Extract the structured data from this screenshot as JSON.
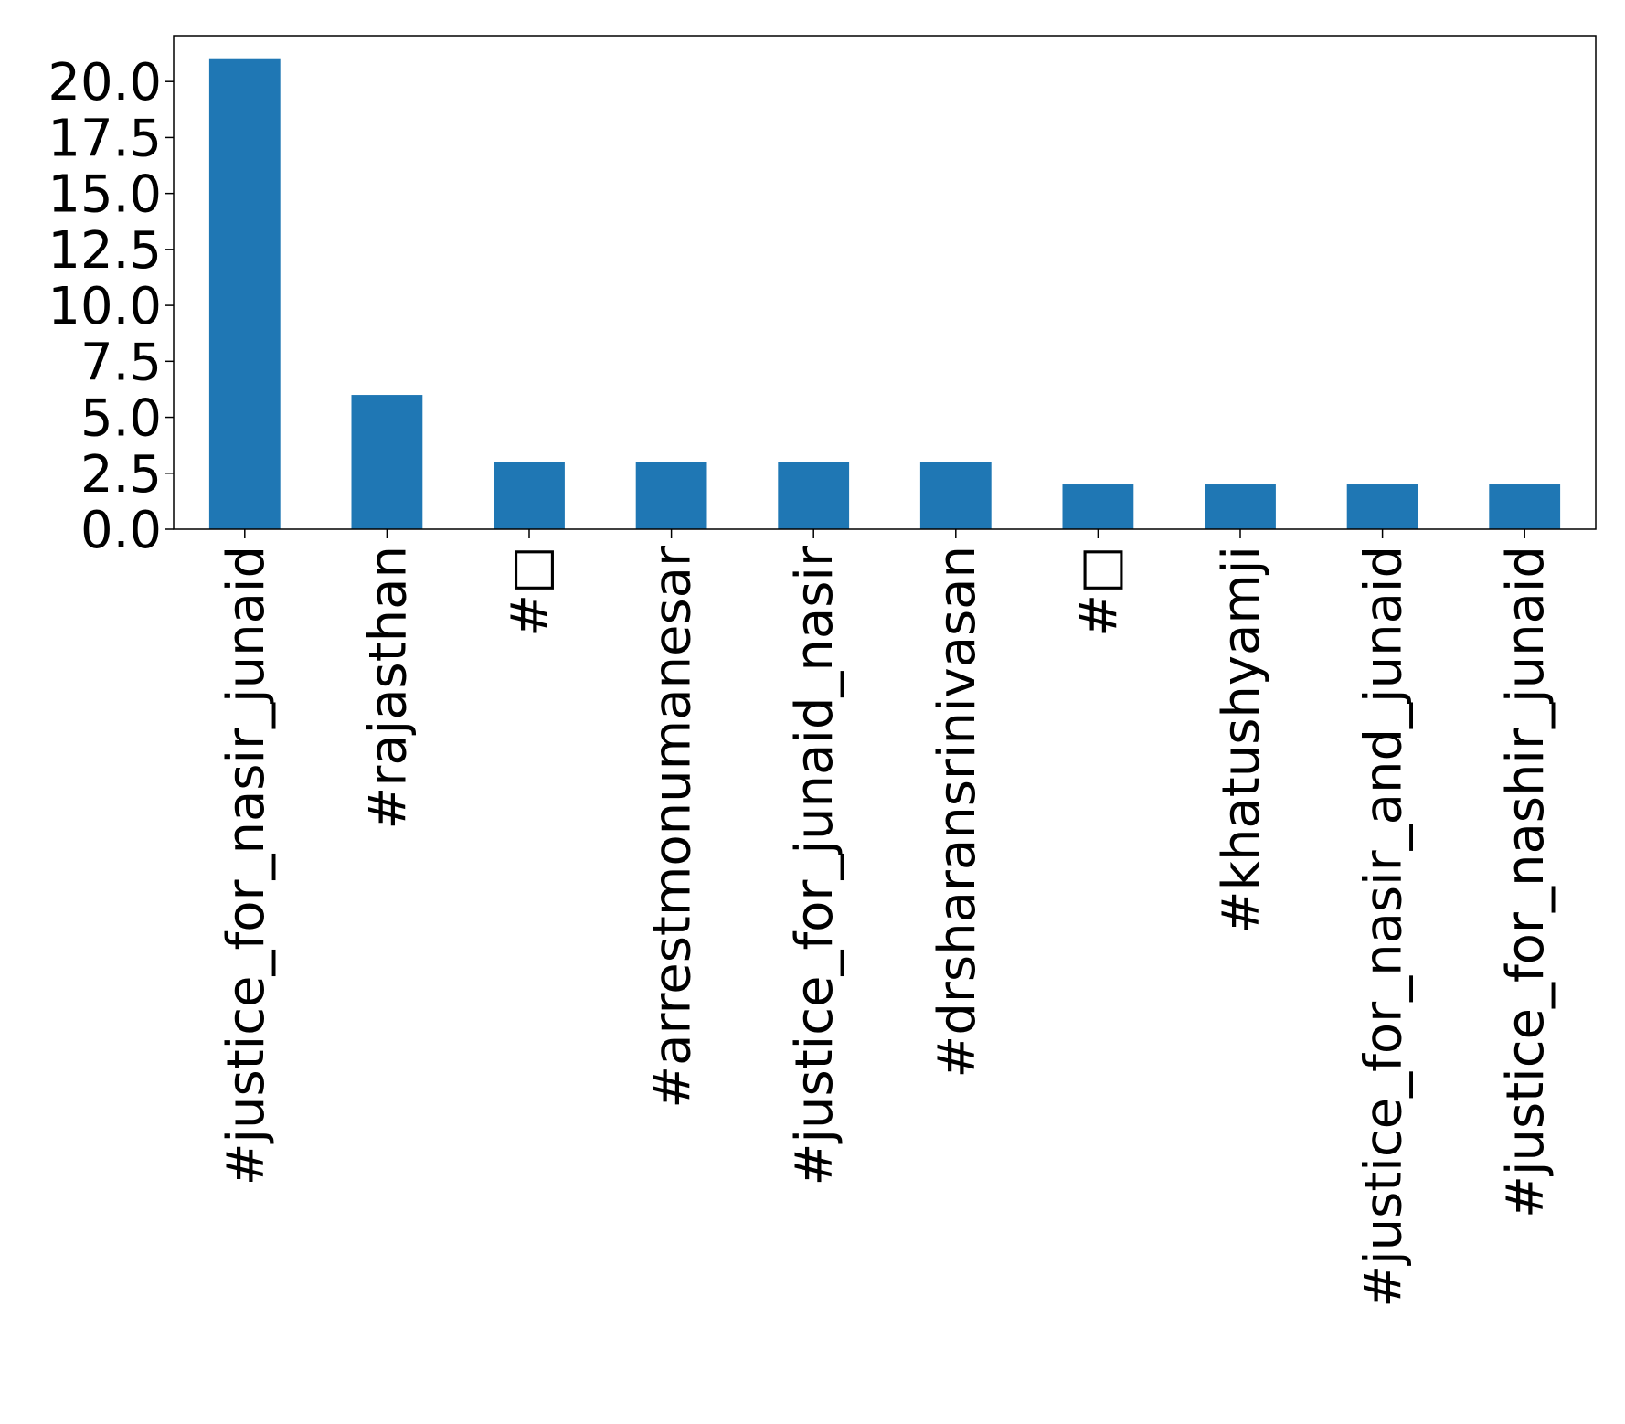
{
  "chart_data": {
    "type": "bar",
    "categories": [
      "#justice_for_nasir_junaid",
      "#rajasthan",
      "#□",
      "#arrestmonumanesar",
      "#justice_for_junaid_nasir",
      "#drsharansrinivasan",
      "#□",
      "#khatushyamji",
      "#justice_for_nasir_and_junaid",
      "#justice_for_nashir_junaid"
    ],
    "values": [
      21,
      6,
      3,
      3,
      3,
      3,
      2,
      2,
      2,
      2
    ],
    "yticks": [
      "0.0",
      "2.5",
      "5.0",
      "7.5",
      "10.0",
      "12.5",
      "15.0",
      "17.5",
      "20.0"
    ],
    "ylim": [
      0,
      22.05
    ],
    "title": "",
    "xlabel": "",
    "ylabel": "",
    "grid": false,
    "legend": "none",
    "bar_color": "#1f77b4"
  }
}
